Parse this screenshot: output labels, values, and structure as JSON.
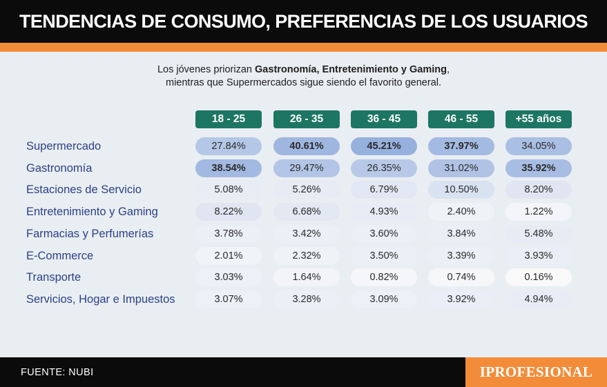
{
  "header": {
    "title": "TENDENCIAS DE CONSUMO, PREFERENCIAS DE LOS USUARIOS"
  },
  "subtitle": {
    "line1_pre": "Los jóvenes priorizan ",
    "line1_bold": "Gastronomía, Entretenimiento y Gaming",
    "line1_post": ",",
    "line2": "mientras que Supermercados sigue siendo el favorito general."
  },
  "colors": {
    "header_bg": "#0b0b0b",
    "accent": "#f28c38",
    "column_header": "#1d7663",
    "label": "#2c3f86"
  },
  "chart_data": {
    "type": "table",
    "title": "TENDENCIAS DE CONSUMO, PREFERENCIAS DE LOS USUARIOS",
    "columns": [
      "18 - 25",
      "26 - 35",
      "36 - 45",
      "46 - 55",
      "+55 años"
    ],
    "rows": [
      {
        "label": "Supermercado",
        "values": [
          "27.84%",
          "40.61%",
          "45.21%",
          "37.97%",
          "34.05%"
        ],
        "numeric": [
          27.84,
          40.61,
          45.21,
          37.97,
          34.05
        ]
      },
      {
        "label": "Gastronomía",
        "values": [
          "38.54%",
          "29.47%",
          "26.35%",
          "31.02%",
          "35.92%"
        ],
        "numeric": [
          38.54,
          29.47,
          26.35,
          31.02,
          35.92
        ]
      },
      {
        "label": "Estaciones de Servicio",
        "values": [
          "5.08%",
          "5.26%",
          "6.79%",
          "10.50%",
          "8.20%"
        ],
        "numeric": [
          5.08,
          5.26,
          6.79,
          10.5,
          8.2
        ]
      },
      {
        "label": "Entretenimiento y Gaming",
        "values": [
          "8.22%",
          "6.68%",
          "4.93%",
          "2.40%",
          "1.22%"
        ],
        "numeric": [
          8.22,
          6.68,
          4.93,
          2.4,
          1.22
        ]
      },
      {
        "label": "Farmacias y Perfumerías",
        "values": [
          "3.78%",
          "3.42%",
          "3.60%",
          "3.84%",
          "5.48%"
        ],
        "numeric": [
          3.78,
          3.42,
          3.6,
          3.84,
          5.48
        ]
      },
      {
        "label": "E-Commerce",
        "values": [
          "2.01%",
          "2.32%",
          "3.50%",
          "3.39%",
          "3.93%"
        ],
        "numeric": [
          2.01,
          2.32,
          3.5,
          3.39,
          3.93
        ]
      },
      {
        "label": "Transporte",
        "values": [
          "3.03%",
          "1.64%",
          "0.82%",
          "0.74%",
          "0.16%"
        ],
        "numeric": [
          3.03,
          1.64,
          0.82,
          0.74,
          0.16
        ]
      },
      {
        "label": "Servicios, Hogar e Impuestos",
        "values": [
          "3.07%",
          "3.28%",
          "3.09%",
          "3.92%",
          "4.94%"
        ],
        "numeric": [
          3.07,
          3.28,
          3.09,
          3.92,
          4.94
        ]
      }
    ],
    "highlighted": [
      [
        false,
        true,
        true,
        true,
        false
      ],
      [
        true,
        false,
        false,
        false,
        true
      ],
      [
        false,
        false,
        false,
        false,
        false
      ],
      [
        false,
        false,
        false,
        false,
        false
      ],
      [
        false,
        false,
        false,
        false,
        false
      ],
      [
        false,
        false,
        false,
        false,
        false
      ],
      [
        false,
        false,
        false,
        false,
        false
      ],
      [
        false,
        false,
        false,
        false,
        false
      ]
    ]
  },
  "footer": {
    "source": "FUENTE: NUBI",
    "brand": "IPROFESIONAL"
  }
}
